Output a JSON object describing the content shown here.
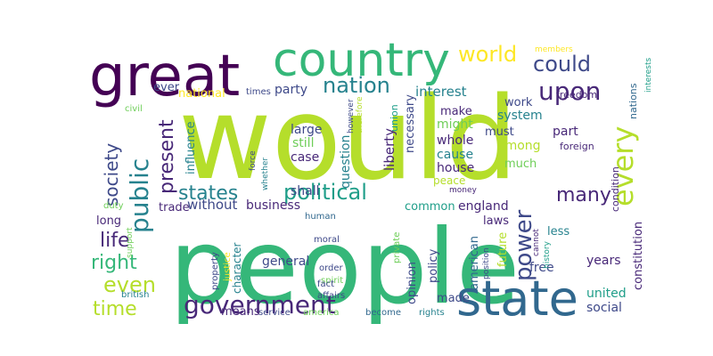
{
  "palette": {
    "yellow": "#fde725",
    "lime": "#b5de2b",
    "green": "#6ece58",
    "teal_green": "#35b779",
    "teal": "#1f9e89",
    "cyan": "#26828e",
    "blue": "#31688e",
    "indigo": "#3e4989",
    "violet": "#482878",
    "purple": "#440154"
  },
  "words": [
    {
      "text": "would",
      "color": "lime"
    },
    {
      "text": "people",
      "color": "teal_green"
    },
    {
      "text": "great",
      "color": "purple"
    },
    {
      "text": "country",
      "color": "teal_green"
    },
    {
      "text": "state",
      "color": "blue"
    },
    {
      "text": "government",
      "color": "violet"
    },
    {
      "text": "upon",
      "color": "violet"
    },
    {
      "text": "world",
      "color": "yellow"
    },
    {
      "text": "could",
      "color": "indigo"
    },
    {
      "text": "nation",
      "color": "cyan"
    },
    {
      "text": "political",
      "color": "teal"
    },
    {
      "text": "public",
      "color": "cyan"
    },
    {
      "text": "society",
      "color": "indigo"
    },
    {
      "text": "present",
      "color": "violet"
    },
    {
      "text": "states",
      "color": "cyan"
    },
    {
      "text": "every",
      "color": "lime"
    },
    {
      "text": "power",
      "color": "indigo"
    },
    {
      "text": "many",
      "color": "violet"
    },
    {
      "text": "life",
      "color": "violet"
    },
    {
      "text": "right",
      "color": "teal_green"
    },
    {
      "text": "even",
      "color": "lime"
    },
    {
      "text": "time",
      "color": "lime"
    },
    {
      "text": "interest",
      "color": "cyan"
    },
    {
      "text": "party",
      "color": "indigo"
    },
    {
      "text": "national",
      "color": "yellow"
    },
    {
      "text": "ever",
      "color": "indigo"
    },
    {
      "text": "make",
      "color": "violet"
    },
    {
      "text": "might",
      "color": "green"
    },
    {
      "text": "must",
      "color": "indigo"
    },
    {
      "text": "among",
      "color": "lime"
    },
    {
      "text": "whole",
      "color": "violet"
    },
    {
      "text": "cause",
      "color": "cyan"
    },
    {
      "text": "house",
      "color": "violet"
    },
    {
      "text": "much",
      "color": "green"
    },
    {
      "text": "work",
      "color": "indigo"
    },
    {
      "text": "system",
      "color": "cyan"
    },
    {
      "text": "part",
      "color": "violet"
    },
    {
      "text": "foreign",
      "color": "violet"
    },
    {
      "text": "freedom",
      "color": "violet"
    },
    {
      "text": "nations",
      "color": "blue"
    },
    {
      "text": "members",
      "color": "yellow"
    },
    {
      "text": "interests",
      "color": "teal"
    },
    {
      "text": "times",
      "color": "indigo"
    },
    {
      "text": "however",
      "color": "indigo"
    },
    {
      "text": "therefore",
      "color": "lime"
    },
    {
      "text": "necessary",
      "color": "indigo"
    },
    {
      "text": "union",
      "color": "teal"
    },
    {
      "text": "liberty",
      "color": "violet"
    },
    {
      "text": "question",
      "color": "cyan"
    },
    {
      "text": "large",
      "color": "indigo"
    },
    {
      "text": "still",
      "color": "green"
    },
    {
      "text": "case",
      "color": "violet"
    },
    {
      "text": "civil",
      "color": "green"
    },
    {
      "text": "influence",
      "color": "cyan"
    },
    {
      "text": "force",
      "color": "indigo"
    },
    {
      "text": "whether",
      "color": "cyan"
    },
    {
      "text": "shall",
      "color": "indigo"
    },
    {
      "text": "trade",
      "color": "violet"
    },
    {
      "text": "without",
      "color": "indigo"
    },
    {
      "text": "business",
      "color": "violet"
    },
    {
      "text": "long",
      "color": "violet"
    },
    {
      "text": "duty",
      "color": "green"
    },
    {
      "text": "support",
      "color": "green"
    },
    {
      "text": "character",
      "color": "cyan"
    },
    {
      "text": "property",
      "color": "indigo"
    },
    {
      "text": "justice",
      "color": "yellow"
    },
    {
      "text": "general",
      "color": "indigo"
    },
    {
      "text": "human",
      "color": "blue"
    },
    {
      "text": "moral",
      "color": "indigo"
    },
    {
      "text": "order",
      "color": "indigo"
    },
    {
      "text": "spirit",
      "color": "green"
    },
    {
      "text": "fact",
      "color": "indigo"
    },
    {
      "text": "affairs",
      "color": "indigo"
    },
    {
      "text": "british",
      "color": "cyan"
    },
    {
      "text": "means",
      "color": "violet"
    },
    {
      "text": "service",
      "color": "indigo"
    },
    {
      "text": "america",
      "color": "green"
    },
    {
      "text": "become",
      "color": "blue"
    },
    {
      "text": "peace",
      "color": "lime"
    },
    {
      "text": "money",
      "color": "violet"
    },
    {
      "text": "england",
      "color": "violet"
    },
    {
      "text": "common",
      "color": "teal"
    },
    {
      "text": "laws",
      "color": "violet"
    },
    {
      "text": "less",
      "color": "cyan"
    },
    {
      "text": "private",
      "color": "green"
    },
    {
      "text": "policy",
      "color": "indigo"
    },
    {
      "text": "opinion",
      "color": "indigo"
    },
    {
      "text": "american",
      "color": "blue"
    },
    {
      "text": "future",
      "color": "lime"
    },
    {
      "text": "position",
      "color": "indigo"
    },
    {
      "text": "cannot",
      "color": "violet"
    },
    {
      "text": "history",
      "color": "teal"
    },
    {
      "text": "constitution",
      "color": "violet"
    },
    {
      "text": "condition",
      "color": "violet"
    },
    {
      "text": "free",
      "color": "indigo"
    },
    {
      "text": "years",
      "color": "violet"
    },
    {
      "text": "made",
      "color": "indigo"
    },
    {
      "text": "rights",
      "color": "cyan"
    },
    {
      "text": "united",
      "color": "teal"
    },
    {
      "text": "social",
      "color": "indigo"
    }
  ]
}
